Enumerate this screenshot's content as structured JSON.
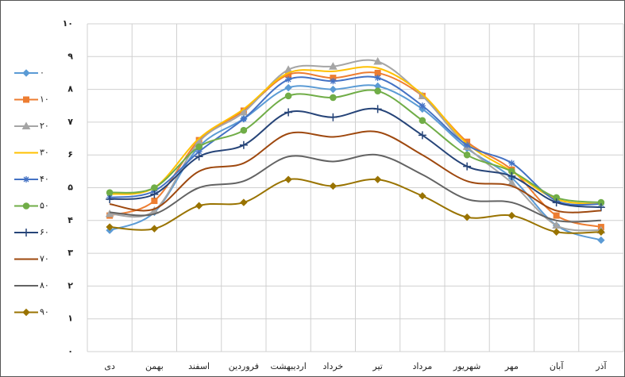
{
  "chart_data": {
    "type": "line",
    "categories": [
      "دی",
      "بهمن",
      "اسفند",
      "فروردین",
      "اردیبهشت",
      "خرداد",
      "تیر",
      "مرداد",
      "شهریور",
      "مهر",
      "آبان",
      "آذر"
    ],
    "ylim": [
      0,
      10
    ],
    "yticks": [
      {
        "value": 0,
        "label": "۰"
      },
      {
        "value": 1,
        "label": "۱"
      },
      {
        "value": 2,
        "label": "۲"
      },
      {
        "value": 3,
        "label": "۳"
      },
      {
        "value": 4,
        "label": "۴"
      },
      {
        "value": 5,
        "label": "۵"
      },
      {
        "value": 6,
        "label": "۶"
      },
      {
        "value": 7,
        "label": "۷"
      },
      {
        "value": 8,
        "label": "۸"
      },
      {
        "value": 9,
        "label": "۹"
      },
      {
        "value": 10,
        "label": "۱۰"
      }
    ],
    "grid": true,
    "legend": "left",
    "series": [
      {
        "name": "۰",
        "color": "#5b9bd5",
        "marker": "diamond",
        "values": [
          3.7,
          4.25,
          6.25,
          7.1,
          8.05,
          8.0,
          8.1,
          7.4,
          6.2,
          5.3,
          3.85,
          3.4
        ]
      },
      {
        "name": "۱۰",
        "color": "#ed7d31",
        "marker": "square",
        "values": [
          4.15,
          4.6,
          6.45,
          7.35,
          8.45,
          8.35,
          8.5,
          7.8,
          6.4,
          5.55,
          4.15,
          3.8
        ]
      },
      {
        "name": "۲۰",
        "color": "#a5a5a5",
        "marker": "triangle",
        "values": [
          4.2,
          4.3,
          6.4,
          7.3,
          8.6,
          8.7,
          8.85,
          7.8,
          6.25,
          5.15,
          3.85,
          3.7
        ]
      },
      {
        "name": "۳۰",
        "color": "#ffc000",
        "marker": "none",
        "values": [
          4.8,
          5.0,
          6.5,
          7.4,
          8.5,
          8.55,
          8.65,
          7.85,
          6.35,
          5.5,
          4.65,
          4.5
        ]
      },
      {
        "name": "۴۰",
        "color": "#4472c4",
        "marker": "star",
        "values": [
          4.7,
          4.9,
          6.1,
          7.1,
          8.3,
          8.25,
          8.35,
          7.5,
          6.3,
          5.75,
          4.6,
          4.5
        ]
      },
      {
        "name": "۵۰",
        "color": "#70ad47",
        "marker": "circle",
        "values": [
          4.85,
          5.0,
          6.25,
          6.75,
          7.8,
          7.75,
          7.95,
          7.05,
          6.0,
          5.5,
          4.7,
          4.55
        ]
      },
      {
        "name": "۶۰",
        "color": "#264478",
        "marker": "plus",
        "values": [
          4.65,
          4.8,
          5.95,
          6.3,
          7.3,
          7.15,
          7.4,
          6.6,
          5.65,
          5.35,
          4.55,
          4.4
        ]
      },
      {
        "name": "۷۰",
        "color": "#9e480e",
        "marker": "none",
        "values": [
          4.5,
          4.35,
          5.5,
          5.75,
          6.65,
          6.55,
          6.7,
          6.0,
          5.2,
          5.05,
          4.3,
          4.3
        ]
      },
      {
        "name": "۸۰",
        "color": "#636363",
        "marker": "none",
        "values": [
          4.25,
          4.2,
          5.0,
          5.2,
          5.95,
          5.8,
          6.0,
          5.4,
          4.65,
          4.55,
          4.0,
          4.0
        ]
      },
      {
        "name": "۹۰",
        "color": "#997300",
        "marker": "diamond",
        "values": [
          3.8,
          3.75,
          4.45,
          4.55,
          5.25,
          5.05,
          5.25,
          4.75,
          4.1,
          4.15,
          3.65,
          3.65
        ]
      }
    ]
  }
}
